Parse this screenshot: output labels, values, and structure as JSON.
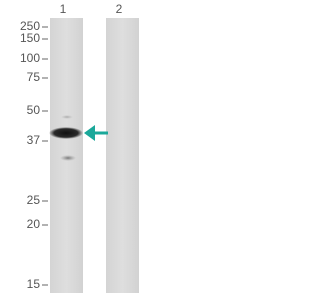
{
  "lanes": [
    "1",
    "2"
  ],
  "markers": [
    "250",
    "150",
    "100",
    "75",
    "50",
    "37",
    "25",
    "20",
    "15"
  ]
}
